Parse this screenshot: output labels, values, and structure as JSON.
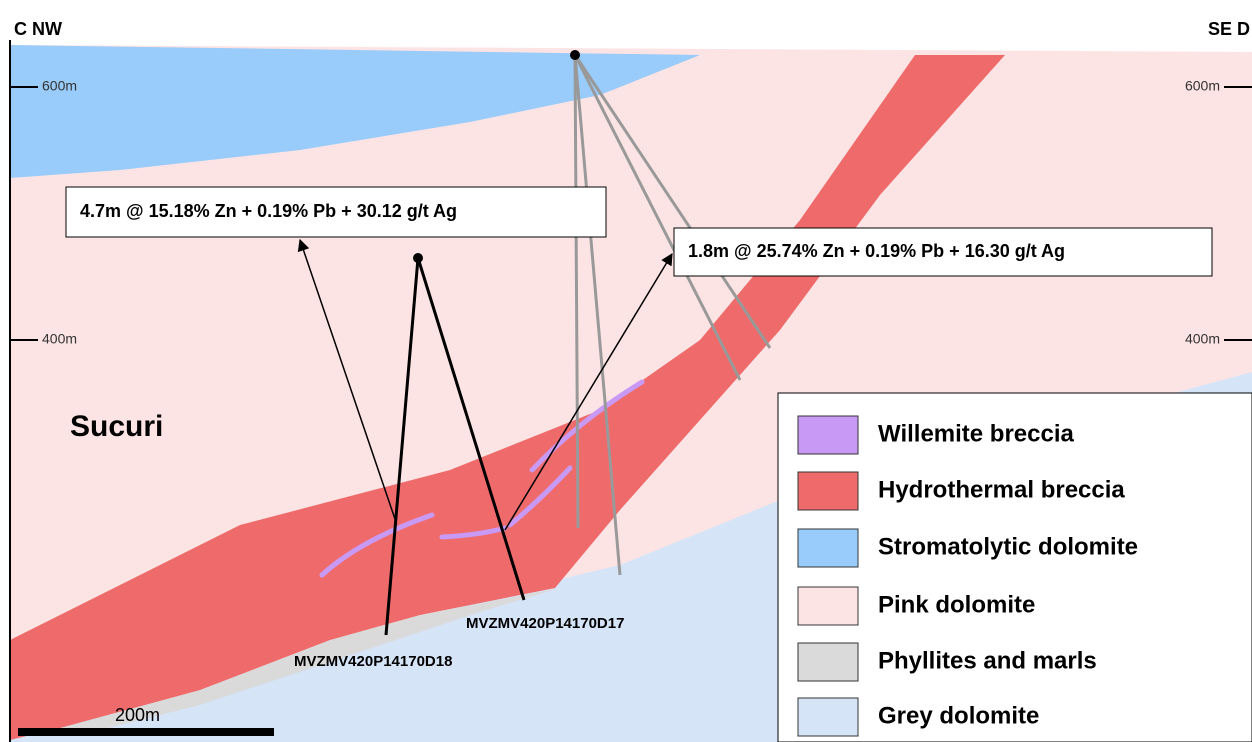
{
  "section": {
    "left_label": "C NW",
    "right_label": "SE D"
  },
  "elevations": {
    "left": [
      "600m",
      "400m"
    ],
    "right": [
      "600m",
      "400m"
    ]
  },
  "area_label": "Sucuri",
  "intercepts": [
    "4.7m @ 15.18% Zn + 0.19% Pb + 30.12 g/t Ag",
    "1.8m @ 25.74% Zn + 0.19% Pb + 16.30 g/t Ag"
  ],
  "drillholes": [
    "MVZMV420P14170D18",
    "MVZMV420P14170D17"
  ],
  "scale_bar": "200m",
  "legend": [
    {
      "label": "Willemite breccia",
      "color": "#c99af5"
    },
    {
      "label": "Hydrothermal breccia",
      "color": "#ef6b6b"
    },
    {
      "label": "Stromatolytic dolomite",
      "color": "#99cbfb"
    },
    {
      "label": "Pink dolomite",
      "color": "#fde4e4"
    },
    {
      "label": "Phyllites and marls",
      "color": "#dadada"
    },
    {
      "label": "Grey dolomite",
      "color": "#d6e4f8"
    }
  ]
}
